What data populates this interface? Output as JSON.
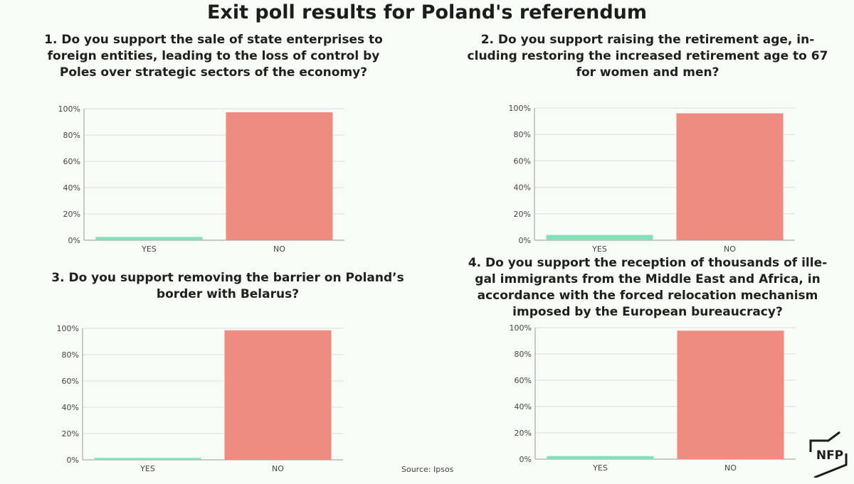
{
  "title": "Exit poll results for Poland's referendum",
  "source": "Source: Ipsos",
  "logo_text": "NFP",
  "colors": {
    "yes": "#84e0b9",
    "no": "#ef8c82",
    "grid": "#dcdcdc",
    "axis": "#999999",
    "background": "#f7fcf7"
  },
  "chart_data": [
    {
      "type": "bar",
      "title": "1. Do you support the sale of state enterprises to foreign entities, leading to the loss of control by Poles over strategic sectors of the economy?",
      "title_lines": [
        "1. Do you support the sale of state enterprises to",
        "foreign entities, leading to the loss of control by",
        "Poles over strategic sectors of the economy?"
      ],
      "categories": [
        "YES",
        "NO"
      ],
      "values": [
        2.5,
        97.3
      ],
      "ylim": [
        0,
        100
      ],
      "yticks": [
        "0%",
        "20%",
        "40%",
        "60%",
        "80%",
        "100%"
      ],
      "grid": true
    },
    {
      "type": "bar",
      "title": "2. Do you support raising the retirement age, including restoring the increased retirement age to 67 for women and men?",
      "title_lines": [
        "2. Do you support raising the retirement age, in-",
        "cluding restoring the increased retirement age to 67",
        "for women and men?"
      ],
      "categories": [
        "YES",
        "NO"
      ],
      "values": [
        4.0,
        96.0
      ],
      "ylim": [
        0,
        100
      ],
      "yticks": [
        "0%",
        "20%",
        "40%",
        "60%",
        "80%",
        "100%"
      ],
      "grid": true
    },
    {
      "type": "bar",
      "title": "3. Do you support removing the barrier on Poland’s border with Belarus?",
      "title_lines": [
        "3. Do you support removing the barrier on Poland’s",
        "border with Belarus?"
      ],
      "categories": [
        "YES",
        "NO"
      ],
      "values": [
        1.5,
        98.5
      ],
      "ylim": [
        0,
        100
      ],
      "yticks": [
        "0%",
        "20%",
        "40%",
        "60%",
        "80%",
        "100%"
      ],
      "grid": true
    },
    {
      "type": "bar",
      "title": "4. Do you support the reception of thousands of illegal immigrants from the Middle East and Africa, in accordance with the forced relocation mechanism imposed by the European bureaucracy?",
      "title_lines": [
        "4. Do you support the reception of thousands of ille-",
        "gal immigrants from the Middle East and Africa, in",
        "accordance with the forced relocation mechanism",
        "imposed by the European bureaucracy?"
      ],
      "categories": [
        "YES",
        "NO"
      ],
      "values": [
        2.3,
        97.7
      ],
      "ylim": [
        0,
        100
      ],
      "yticks": [
        "0%",
        "20%",
        "40%",
        "60%",
        "80%",
        "100%"
      ],
      "grid": true
    }
  ]
}
